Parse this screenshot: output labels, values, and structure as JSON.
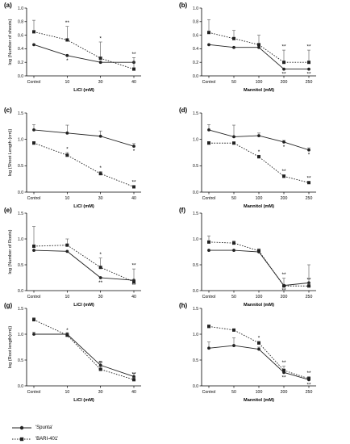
{
  "legend": {
    "series": [
      {
        "label": "'Spunta'",
        "marker": "circle",
        "dash": "solid"
      },
      {
        "label": "'BARI-401'",
        "marker": "square",
        "dash": "dotted"
      }
    ]
  },
  "chart_data": [
    {
      "type": "line",
      "panel": "(a)",
      "ylabel": "log (Number of shoots)",
      "xlabel": "LiCl (mM)",
      "categories": [
        "Control",
        "10",
        "30",
        "40"
      ],
      "ylim": [
        0,
        1.0
      ],
      "yticks": [
        "0.0",
        "0.2",
        "0.4",
        "0.6",
        "0.8",
        "1.0"
      ],
      "series": [
        {
          "name": "'Spunta'",
          "values": [
            0.46,
            0.3,
            0.2,
            0.2
          ],
          "errors": [
            0.0,
            0.0,
            0.0,
            0.0
          ],
          "labels": [
            "",
            "*",
            "",
            ""
          ]
        },
        {
          "name": "'BARI-401'",
          "values": [
            0.65,
            0.53,
            0.26,
            0.1
          ],
          "errors": [
            0.17,
            0.2,
            0.24,
            0.17
          ],
          "labels": [
            "",
            "**",
            "*",
            "**"
          ]
        }
      ]
    },
    {
      "type": "line",
      "panel": "(b)",
      "ylabel": "",
      "xlabel": "Mannitol (mM)",
      "categories": [
        "Control",
        "50",
        "100",
        "200",
        "250"
      ],
      "ylim": [
        0,
        1.0
      ],
      "yticks": [
        "0.0",
        "0.2",
        "0.4",
        "0.6",
        "0.8",
        "1.0"
      ],
      "series": [
        {
          "name": "'Spunta'",
          "values": [
            0.46,
            0.42,
            0.42,
            0.1,
            0.1
          ],
          "errors": [
            0.0,
            0.0,
            0.0,
            0.0,
            0.0
          ],
          "labels": [
            "",
            "",
            "",
            "**",
            "**"
          ]
        },
        {
          "name": "'BARI-401'",
          "values": [
            0.64,
            0.55,
            0.46,
            0.2,
            0.2
          ],
          "errors": [
            0.19,
            0.12,
            0.14,
            0.18,
            0.18
          ],
          "labels": [
            "",
            "",
            "",
            "**",
            "**"
          ]
        }
      ]
    },
    {
      "type": "line",
      "panel": "(c)",
      "ylabel": "log (Shoot Length (cm))",
      "xlabel": "LiCl (mM)",
      "categories": [
        "Control",
        "10",
        "30",
        "40"
      ],
      "ylim": [
        0,
        1.5
      ],
      "yticks": [
        "0.0",
        "0.5",
        "1.0",
        "1.5"
      ],
      "series": [
        {
          "name": "'Spunta'",
          "values": [
            1.18,
            1.12,
            1.06,
            0.87
          ],
          "errors": [
            0.1,
            0.15,
            0.1,
            0.05
          ],
          "labels": [
            "",
            "",
            "",
            "*"
          ]
        },
        {
          "name": "'BARI-401'",
          "values": [
            0.93,
            0.7,
            0.35,
            0.1
          ],
          "errors": [
            0.03,
            0.05,
            0.04,
            0.02
          ],
          "labels": [
            "",
            "*",
            "*",
            "**"
          ]
        }
      ]
    },
    {
      "type": "line",
      "panel": "(d)",
      "ylabel": "",
      "xlabel": "Mannitol (mM)",
      "categories": [
        "Control",
        "50",
        "100",
        "200",
        "250"
      ],
      "ylim": [
        0,
        1.5
      ],
      "yticks": [
        "0.0",
        "0.5",
        "1.0",
        "1.5"
      ],
      "series": [
        {
          "name": "'Spunta'",
          "values": [
            1.18,
            1.05,
            1.07,
            0.95,
            0.8
          ],
          "errors": [
            0.1,
            0.22,
            0.05,
            0.03,
            0.04
          ],
          "labels": [
            "",
            "",
            "",
            "*",
            "*"
          ]
        },
        {
          "name": "'BARI-401'",
          "values": [
            0.93,
            0.93,
            0.67,
            0.3,
            0.18
          ],
          "errors": [
            0.03,
            0.02,
            0.03,
            0.03,
            0.02
          ],
          "labels": [
            "",
            "",
            "*",
            "**",
            "**"
          ]
        }
      ]
    },
    {
      "type": "line",
      "panel": "(e)",
      "ylabel": "log (Number of Roots)",
      "xlabel": "LiCl (mM)",
      "categories": [
        "Control",
        "10",
        "30",
        "40"
      ],
      "ylim": [
        0,
        1.5
      ],
      "yticks": [
        "0.0",
        "0.5",
        "1.0",
        "1.5"
      ],
      "series": [
        {
          "name": "'Spunta'",
          "values": [
            0.78,
            0.76,
            0.25,
            0.2
          ],
          "errors": [
            0.0,
            0.0,
            0.0,
            0.0
          ],
          "labels": [
            "",
            "",
            "**",
            "**"
          ]
        },
        {
          "name": "'BARI-401'",
          "values": [
            0.86,
            0.88,
            0.45,
            0.17
          ],
          "errors": [
            0.38,
            0.12,
            0.18,
            0.25
          ],
          "labels": [
            "",
            "",
            "*",
            "**"
          ]
        }
      ]
    },
    {
      "type": "line",
      "panel": "(f)",
      "ylabel": "",
      "xlabel": "Mannitol (mM)",
      "categories": [
        "Control",
        "50",
        "100",
        "200",
        "250"
      ],
      "ylim": [
        0,
        1.5
      ],
      "yticks": [
        "0.0",
        "0.5",
        "1.0",
        "1.5"
      ],
      "series": [
        {
          "name": "'Spunta'",
          "values": [
            0.78,
            0.78,
            0.75,
            0.1,
            0.15
          ],
          "errors": [
            0.0,
            0.0,
            0.0,
            0.0,
            0.35
          ],
          "labels": [
            "",
            "",
            "",
            "**",
            "**"
          ]
        },
        {
          "name": "'BARI-401'",
          "values": [
            0.94,
            0.92,
            0.77,
            0.09,
            0.09
          ],
          "errors": [
            0.12,
            0.04,
            0.04,
            0.15,
            0.05
          ],
          "labels": [
            "",
            "",
            "",
            "**",
            "**"
          ]
        }
      ]
    },
    {
      "type": "line",
      "panel": "(g)",
      "ylabel": "log (Root length(cm))",
      "xlabel": "LiCl (mM)",
      "categories": [
        "Control",
        "10",
        "30",
        "40"
      ],
      "ylim": [
        0,
        1.5
      ],
      "yticks": [
        "0.0",
        "0.5",
        "1.0",
        "1.5"
      ],
      "series": [
        {
          "name": "'Spunta'",
          "values": [
            1.0,
            1.0,
            0.4,
            0.18
          ],
          "errors": [
            0.04,
            0.03,
            0.08,
            0.06
          ],
          "labels": [
            "",
            "",
            "**",
            "**"
          ]
        },
        {
          "name": "'BARI-401'",
          "values": [
            1.28,
            0.98,
            0.32,
            0.12
          ],
          "errors": [
            0.04,
            0.03,
            0.05,
            0.04
          ],
          "labels": [
            "",
            "*",
            "**",
            "**"
          ]
        }
      ]
    },
    {
      "type": "line",
      "panel": "(h)",
      "ylabel": "",
      "xlabel": "Mannitol (mM)",
      "categories": [
        "Control",
        "50",
        "100",
        "200",
        "250"
      ],
      "ylim": [
        0,
        1.5
      ],
      "yticks": [
        "0.0",
        "0.5",
        "1.0",
        "1.5"
      ],
      "series": [
        {
          "name": "'Spunta'",
          "values": [
            0.73,
            0.78,
            0.71,
            0.26,
            0.12
          ],
          "errors": [
            0.12,
            0.15,
            0.04,
            0.05,
            0.03
          ],
          "labels": [
            "",
            "",
            "",
            "**",
            "**"
          ]
        },
        {
          "name": "'BARI-401'",
          "values": [
            1.15,
            1.08,
            0.83,
            0.3,
            0.14
          ],
          "errors": [
            0.03,
            0.02,
            0.03,
            0.08,
            0.04
          ],
          "labels": [
            "",
            "",
            "*",
            "**",
            "**"
          ]
        }
      ]
    }
  ]
}
